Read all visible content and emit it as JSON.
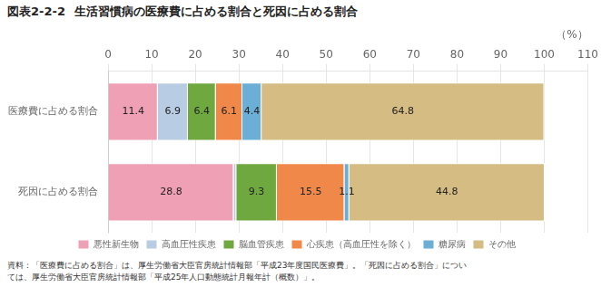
{
  "chart_data": {
    "type": "bar",
    "orientation": "horizontal",
    "stacked": true,
    "figure_label": "図表2-2-2",
    "title": "生活習慣病の医療費に占める割合と死因に占める割合",
    "x_label": "（%）",
    "categories": [
      "医療費に占める割合",
      "死因に占める割合"
    ],
    "series": [
      {
        "name": "悪性新生物",
        "values": [
          11.4,
          28.8
        ],
        "color": "#f0a0b5"
      },
      {
        "name": "高血圧性疾患",
        "values": [
          6.9,
          0.6
        ],
        "value_labels": [
          "6.9",
          null
        ],
        "color": "#b8cce4"
      },
      {
        "name": "脳血管疾患",
        "values": [
          6.4,
          9.3
        ],
        "color": "#70a840"
      },
      {
        "name": "心疾患（高血圧性を除く）",
        "values": [
          6.1,
          15.5
        ],
        "color": "#f0884a"
      },
      {
        "name": "糖尿病",
        "values": [
          4.4,
          1.1
        ],
        "color": "#6baed6"
      },
      {
        "name": "その他",
        "values": [
          64.8,
          44.8
        ],
        "color": "#d4bc82"
      }
    ],
    "xlim": [
      0,
      110
    ],
    "xticks": [
      0,
      10,
      20,
      30,
      40,
      50,
      60,
      70,
      80,
      90,
      100,
      110
    ],
    "grid": true,
    "legend": "bottom",
    "data_labels": true,
    "notes": [
      "資料：「医療費に占める割合」は、厚生労働省大臣官房統計情報部「平成23年度国民医療費」。「死因に占める割合」につい",
      "ては、厚生労働省大臣官房統計情報部「平成25年人口動態統計月報年計（概数）」。"
    ]
  }
}
